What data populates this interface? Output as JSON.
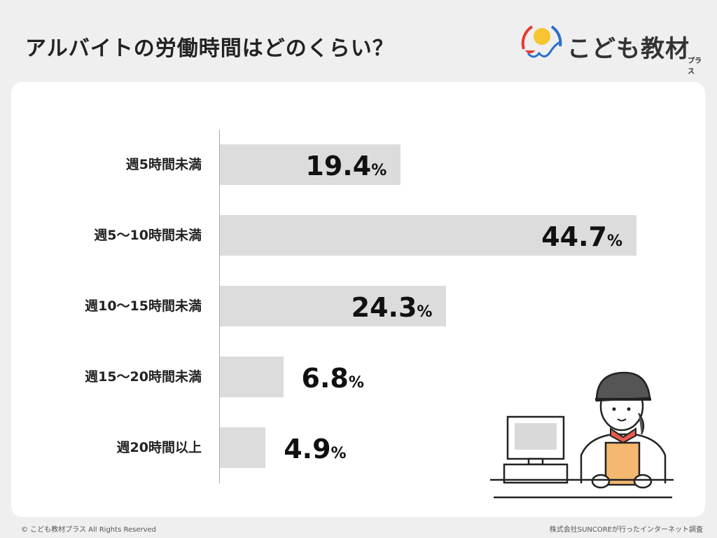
{
  "title": "アルバイトの労働時間はどのくらい？",
  "logo": {
    "text": "こども教材",
    "sub": "プラス"
  },
  "footer": {
    "left": "© こども教材プラス All Rights Reserved",
    "right": "株式会社SUNCOREが行ったインターネット調査"
  },
  "chart_data": {
    "type": "bar",
    "orientation": "horizontal",
    "categories": [
      "週5時間未満",
      "週5〜10時間未満",
      "週10〜15時間未満",
      "週15〜20時間未満",
      "週20時間以上"
    ],
    "values": [
      19.4,
      44.7,
      24.3,
      6.8,
      4.9
    ],
    "unit": "%",
    "bar_color": "#dcdcdc",
    "grid": false
  }
}
